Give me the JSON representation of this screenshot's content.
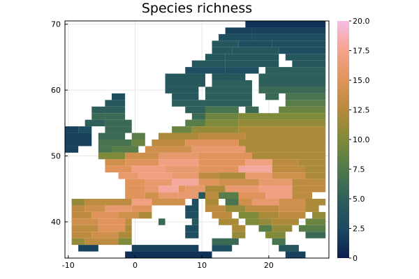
{
  "chart_data": {
    "type": "heatmap",
    "title": "Species richness",
    "xlabel": "",
    "ylabel": "",
    "xlim": [
      -10.5,
      29
    ],
    "ylim": [
      34.5,
      70.5
    ],
    "xticks": [
      -10,
      0,
      10,
      20
    ],
    "xtick_labels": [
      "-10",
      "0",
      "10",
      "20"
    ],
    "yticks": [
      40,
      50,
      60,
      70
    ],
    "ytick_labels": [
      "40",
      "50",
      "60",
      "70"
    ],
    "grid": true,
    "colorbar": {
      "min": 0,
      "max": 20,
      "ticks": [
        0,
        2.5,
        5,
        7.5,
        10,
        12.5,
        15,
        17.5,
        20
      ],
      "tick_labels": [
        "0",
        "2.5",
        "5.0",
        "7.5",
        "10.0",
        "12.5",
        "15.0",
        "17.5",
        "20.0"
      ],
      "colors": [
        "#0b1f4e",
        "#1b4a62",
        "#2e5f5a",
        "#4f7a4c",
        "#7f8a3a",
        "#b68a3a",
        "#e0945c",
        "#f5a38c",
        "#f7bde6"
      ]
    },
    "cell_size_deg": 1,
    "row_spans": [
      {
        "lat": 70,
        "spans": [
          [
            17,
            29,
            1
          ]
        ]
      },
      {
        "lat": 69,
        "spans": [
          [
            14,
            18,
            2
          ],
          [
            18,
            29,
            2
          ]
        ]
      },
      {
        "lat": 68,
        "spans": [
          [
            13,
            18,
            3
          ],
          [
            18,
            29,
            3
          ]
        ]
      },
      {
        "lat": 67,
        "spans": [
          [
            12,
            16,
            4
          ],
          [
            16,
            21,
            3
          ],
          [
            21,
            29,
            3
          ]
        ]
      },
      {
        "lat": 66,
        "spans": [
          [
            12,
            15,
            4
          ],
          [
            15,
            22,
            4
          ],
          [
            22,
            29,
            3
          ]
        ]
      },
      {
        "lat": 65,
        "spans": [
          [
            11,
            14,
            4
          ],
          [
            14,
            22,
            4
          ],
          [
            23,
            29,
            4
          ]
        ]
      },
      {
        "lat": 64,
        "spans": [
          [
            9,
            14,
            4
          ],
          [
            14,
            22,
            4
          ],
          [
            24,
            29,
            4
          ]
        ]
      },
      {
        "lat": 63,
        "spans": [
          [
            8,
            14,
            3
          ],
          [
            14,
            19,
            3
          ],
          [
            20,
            29,
            5
          ]
        ]
      },
      {
        "lat": 62,
        "spans": [
          [
            5,
            11,
            4
          ],
          [
            12,
            17,
            4
          ],
          [
            19,
            29,
            5
          ]
        ]
      },
      {
        "lat": 61,
        "spans": [
          [
            5,
            11,
            4
          ],
          [
            12,
            18,
            5
          ],
          [
            19,
            29,
            5
          ]
        ]
      },
      {
        "lat": 60,
        "spans": [
          [
            5,
            10,
            4
          ],
          [
            11,
            18,
            5
          ],
          [
            19,
            29,
            6
          ]
        ]
      },
      {
        "lat": 59,
        "spans": [
          [
            -3,
            -1,
            3
          ],
          [
            6,
            10,
            4
          ],
          [
            11,
            18,
            5
          ],
          [
            20,
            22,
            6
          ],
          [
            23,
            29,
            7
          ]
        ]
      },
      {
        "lat": 58,
        "spans": [
          [
            -4,
            -1,
            4
          ],
          [
            6,
            11,
            5
          ],
          [
            11,
            18,
            5
          ],
          [
            23,
            29,
            8
          ]
        ]
      },
      {
        "lat": 57,
        "spans": [
          [
            -6,
            -3,
            5
          ],
          [
            -3,
            -1,
            5
          ],
          [
            8,
            11,
            5
          ],
          [
            11,
            16,
            7
          ],
          [
            17,
            19,
            6
          ],
          [
            22,
            29,
            9
          ]
        ]
      },
      {
        "lat": 56,
        "spans": [
          [
            -6,
            -4,
            6
          ],
          [
            -4,
            -1,
            6
          ],
          [
            9,
            11,
            6
          ],
          [
            11,
            16,
            9
          ],
          [
            16,
            29,
            10
          ]
        ]
      },
      {
        "lat": 55,
        "spans": [
          [
            -7,
            -4,
            5
          ],
          [
            -4,
            0,
            6
          ],
          [
            8,
            11,
            8
          ],
          [
            11,
            16,
            10
          ],
          [
            16,
            29,
            11
          ]
        ]
      },
      {
        "lat": 54,
        "spans": [
          [
            -10,
            -8,
            2
          ],
          [
            -8,
            -6,
            3
          ],
          [
            -4,
            0,
            6
          ],
          [
            6,
            9,
            9
          ],
          [
            9,
            16,
            11
          ],
          [
            16,
            29,
            12
          ]
        ]
      },
      {
        "lat": 53,
        "spans": [
          [
            -10,
            -6,
            2
          ],
          [
            -5,
            -1,
            6
          ],
          [
            0,
            2,
            8
          ],
          [
            4,
            10,
            12
          ],
          [
            10,
            17,
            13
          ],
          [
            17,
            29,
            12
          ]
        ]
      },
      {
        "lat": 52,
        "spans": [
          [
            -10,
            -6,
            2
          ],
          [
            -5,
            0,
            7
          ],
          [
            0,
            2,
            9
          ],
          [
            3,
            8,
            13
          ],
          [
            8,
            16,
            15
          ],
          [
            16,
            29,
            12
          ]
        ]
      },
      {
        "lat": 51,
        "spans": [
          [
            -10,
            -8,
            2
          ],
          [
            -5,
            -3,
            7
          ],
          [
            -3,
            1,
            8
          ],
          [
            2,
            9,
            14
          ],
          [
            9,
            17,
            16
          ],
          [
            17,
            29,
            12
          ]
        ]
      },
      {
        "lat": 50,
        "spans": [
          [
            -5,
            -1,
            10
          ],
          [
            -1,
            4,
            14
          ],
          [
            4,
            10,
            16
          ],
          [
            10,
            18,
            15
          ],
          [
            18,
            29,
            12
          ]
        ]
      },
      {
        "lat": 49,
        "spans": [
          [
            -4,
            -1,
            14
          ],
          [
            -1,
            4,
            15
          ],
          [
            4,
            10,
            17
          ],
          [
            10,
            17,
            15
          ],
          [
            17,
            21,
            17
          ],
          [
            21,
            25,
            13
          ],
          [
            25,
            29,
            12
          ]
        ]
      },
      {
        "lat": 48,
        "spans": [
          [
            -4,
            0,
            15
          ],
          [
            0,
            5,
            17
          ],
          [
            5,
            10,
            16
          ],
          [
            10,
            16,
            15
          ],
          [
            16,
            21,
            18
          ],
          [
            21,
            26,
            13
          ],
          [
            26,
            29,
            12
          ]
        ]
      },
      {
        "lat": 47,
        "spans": [
          [
            -2,
            1,
            16
          ],
          [
            1,
            6,
            17
          ],
          [
            6,
            10,
            16
          ],
          [
            10,
            13,
            13
          ],
          [
            13,
            17,
            12
          ],
          [
            17,
            21,
            16
          ],
          [
            21,
            26,
            14
          ],
          [
            26,
            29,
            12
          ]
        ]
      },
      {
        "lat": 46,
        "spans": [
          [
            -1,
            2,
            15
          ],
          [
            2,
            6,
            16
          ],
          [
            6,
            10,
            18
          ],
          [
            10,
            13,
            15
          ],
          [
            13,
            19,
            14
          ],
          [
            19,
            24,
            16
          ],
          [
            24,
            29,
            13
          ]
        ]
      },
      {
        "lat": 45,
        "spans": [
          [
            -1,
            2,
            15
          ],
          [
            2,
            4,
            16
          ],
          [
            4,
            7,
            18
          ],
          [
            7,
            8,
            15
          ],
          [
            8,
            11,
            16
          ],
          [
            11,
            14,
            12
          ],
          [
            14,
            19,
            16
          ],
          [
            19,
            24,
            17
          ],
          [
            24,
            29,
            13
          ]
        ]
      },
      {
        "lat": 44,
        "spans": [
          [
            -1,
            2,
            15
          ],
          [
            2,
            4,
            14
          ],
          [
            4,
            7,
            16
          ],
          [
            7,
            10,
            16
          ],
          [
            10,
            11,
            4
          ],
          [
            11,
            13,
            13
          ],
          [
            13,
            16,
            8
          ],
          [
            16,
            20,
            15
          ],
          [
            20,
            24,
            17
          ],
          [
            24,
            27,
            13
          ]
        ]
      },
      {
        "lat": 43,
        "spans": [
          [
            -9,
            -7,
            11
          ],
          [
            -7,
            -4,
            13
          ],
          [
            -4,
            0,
            13
          ],
          [
            0,
            3,
            17
          ],
          [
            3,
            5,
            14
          ],
          [
            5,
            8,
            14
          ],
          [
            9,
            10,
            3
          ],
          [
            11,
            13,
            12
          ],
          [
            14,
            16,
            7
          ],
          [
            16,
            18,
            14
          ],
          [
            18,
            22,
            16
          ],
          [
            22,
            26,
            14
          ],
          [
            26,
            29,
            12
          ]
        ]
      },
      {
        "lat": 42,
        "spans": [
          [
            -9,
            -7,
            13
          ],
          [
            -7,
            -4,
            14
          ],
          [
            -4,
            0,
            16
          ],
          [
            0,
            3,
            15
          ],
          [
            8,
            10,
            3
          ],
          [
            11,
            14,
            13
          ],
          [
            14,
            17,
            11
          ],
          [
            17,
            22,
            13
          ],
          [
            22,
            26,
            14
          ],
          [
            26,
            28,
            12
          ]
        ]
      },
      {
        "lat": 41,
        "spans": [
          [
            -9,
            -6,
            13
          ],
          [
            -6,
            -2,
            15
          ],
          [
            -2,
            1,
            14
          ],
          [
            1,
            3,
            12
          ],
          [
            8,
            10,
            3
          ],
          [
            12,
            15,
            13
          ],
          [
            16,
            19,
            10
          ],
          [
            19,
            22,
            12
          ],
          [
            22,
            26,
            13
          ],
          [
            27,
            29,
            11
          ]
        ]
      },
      {
        "lat": 40,
        "spans": [
          [
            -9,
            -5,
            14
          ],
          [
            -5,
            -1,
            15
          ],
          [
            -1,
            0,
            13
          ],
          [
            4,
            5,
            6
          ],
          [
            9,
            10,
            4
          ],
          [
            13,
            16,
            12
          ],
          [
            17,
            19,
            10
          ],
          [
            19,
            21,
            11
          ],
          [
            21,
            25,
            12
          ],
          [
            26,
            29,
            9
          ]
        ]
      },
      {
        "lat": 39,
        "spans": [
          [
            -9,
            -5,
            13
          ],
          [
            -5,
            -1,
            15
          ],
          [
            -1,
            0,
            12
          ],
          [
            8,
            10,
            3
          ],
          [
            15,
            17,
            12
          ],
          [
            19,
            21,
            8
          ],
          [
            21,
            24,
            11
          ],
          [
            25,
            29,
            8
          ]
        ]
      },
      {
        "lat": 38,
        "spans": [
          [
            -9,
            -6,
            13
          ],
          [
            -6,
            -2,
            14
          ],
          [
            -2,
            0,
            12
          ],
          [
            8,
            10,
            3
          ],
          [
            15,
            17,
            11
          ],
          [
            20,
            23,
            10
          ],
          [
            26,
            29,
            6
          ]
        ]
      },
      {
        "lat": 37,
        "spans": [
          [
            -9,
            -7,
            11
          ],
          [
            -7,
            -2,
            13
          ],
          [
            -2,
            0,
            10
          ],
          [
            12,
            16,
            6
          ],
          [
            21,
            23,
            7
          ]
        ]
      },
      {
        "lat": 36,
        "spans": [
          [
            -8,
            -5,
            2
          ],
          [
            0,
            10,
            2
          ],
          [
            12,
            15,
            3
          ],
          [
            22,
            25,
            4
          ]
        ]
      },
      {
        "lat": 35,
        "spans": [
          [
            -1,
            12,
            1
          ],
          [
            23,
            26,
            2
          ]
        ]
      }
    ]
  }
}
